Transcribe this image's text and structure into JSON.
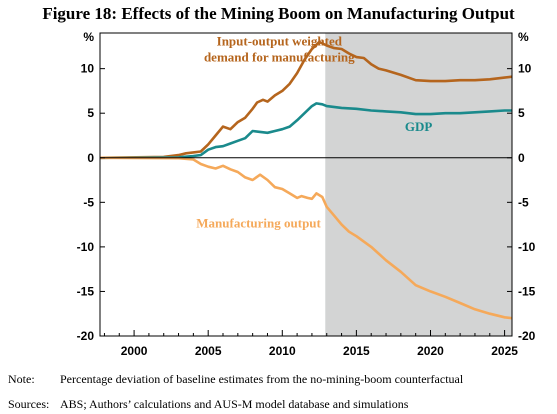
{
  "chart_data": {
    "type": "line",
    "title": "Figure 18: Effects of the Mining Boom on Manufacturing Output",
    "y_unit_left": "%",
    "y_unit_right": "%",
    "xlim": [
      1997.7,
      2025.5
    ],
    "ylim": [
      -20,
      14
    ],
    "x_ticks": [
      2000,
      2005,
      2010,
      2015,
      2020,
      2025
    ],
    "x_tick_labels": [
      "2000",
      "2005",
      "2010",
      "2015",
      "2020",
      "2025"
    ],
    "y_ticks": [
      10,
      5,
      0,
      -5,
      -10,
      -15,
      -20
    ],
    "y_tick_labels": [
      "10",
      "5",
      "0",
      "-5",
      "-10",
      "-15",
      "-20"
    ],
    "shaded_region": [
      2012.9,
      2025.5
    ],
    "grid": false,
    "colors": {
      "shading": "#d3d4d4",
      "demand": "#b5651d",
      "gdp": "#1a8a8c",
      "manufacturing": "#f5a95a"
    },
    "series": [
      {
        "name": "Input-output weighted demand for manufacturing",
        "label_lines": [
          "Input-output weighted",
          "demand for manufacturing"
        ],
        "color": "#b5651d",
        "points": [
          [
            1997.7,
            0
          ],
          [
            2002,
            0.1
          ],
          [
            2003,
            0.3
          ],
          [
            2003.5,
            0.5
          ],
          [
            2004,
            0.6
          ],
          [
            2004.5,
            0.7
          ],
          [
            2005,
            1.5
          ],
          [
            2005.5,
            2.5
          ],
          [
            2006,
            3.5
          ],
          [
            2006.5,
            3.2
          ],
          [
            2007,
            4.0
          ],
          [
            2007.5,
            4.5
          ],
          [
            2008,
            5.5
          ],
          [
            2008.3,
            6.2
          ],
          [
            2008.7,
            6.5
          ],
          [
            2009,
            6.3
          ],
          [
            2009.5,
            7.0
          ],
          [
            2010,
            7.5
          ],
          [
            2010.5,
            8.3
          ],
          [
            2011,
            9.5
          ],
          [
            2011.5,
            11.0
          ],
          [
            2012,
            12.2
          ],
          [
            2012.5,
            13.0
          ],
          [
            2013,
            12.6
          ],
          [
            2013.5,
            12.3
          ],
          [
            2014,
            12.2
          ],
          [
            2014.5,
            11.7
          ],
          [
            2015,
            11.3
          ],
          [
            2015.5,
            11.2
          ],
          [
            2016,
            10.5
          ],
          [
            2016.5,
            10.0
          ],
          [
            2017,
            9.8
          ],
          [
            2018,
            9.3
          ],
          [
            2019,
            8.7
          ],
          [
            2020,
            8.6
          ],
          [
            2021,
            8.6
          ],
          [
            2022,
            8.7
          ],
          [
            2023,
            8.7
          ],
          [
            2024,
            8.8
          ],
          [
            2025,
            9.0
          ],
          [
            2025.5,
            9.1
          ]
        ]
      },
      {
        "name": "GDP",
        "label_lines": [
          "GDP"
        ],
        "color": "#1a8a8c",
        "points": [
          [
            1997.7,
            0
          ],
          [
            2003,
            0.05
          ],
          [
            2004,
            0.2
          ],
          [
            2004.5,
            0.3
          ],
          [
            2005,
            0.9
          ],
          [
            2005.5,
            1.2
          ],
          [
            2006,
            1.3
          ],
          [
            2006.5,
            1.6
          ],
          [
            2007,
            1.9
          ],
          [
            2007.5,
            2.2
          ],
          [
            2008,
            3.0
          ],
          [
            2008.5,
            2.9
          ],
          [
            2009,
            2.8
          ],
          [
            2009.5,
            3.0
          ],
          [
            2010,
            3.2
          ],
          [
            2010.5,
            3.5
          ],
          [
            2011,
            4.2
          ],
          [
            2011.5,
            5.0
          ],
          [
            2012,
            5.8
          ],
          [
            2012.3,
            6.1
          ],
          [
            2012.7,
            6.0
          ],
          [
            2013,
            5.8
          ],
          [
            2014,
            5.6
          ],
          [
            2015,
            5.5
          ],
          [
            2016,
            5.3
          ],
          [
            2017,
            5.2
          ],
          [
            2018,
            5.1
          ],
          [
            2019,
            4.9
          ],
          [
            2020,
            4.9
          ],
          [
            2021,
            5.0
          ],
          [
            2022,
            5.0
          ],
          [
            2023,
            5.1
          ],
          [
            2024,
            5.2
          ],
          [
            2025,
            5.3
          ],
          [
            2025.5,
            5.3
          ]
        ]
      },
      {
        "name": "Manufacturing output",
        "label_lines": [
          "Manufacturing output"
        ],
        "color": "#f5a95a",
        "points": [
          [
            1997.7,
            0
          ],
          [
            2003,
            -0.05
          ],
          [
            2004,
            -0.2
          ],
          [
            2004.5,
            -0.7
          ],
          [
            2005,
            -1.0
          ],
          [
            2005.5,
            -1.2
          ],
          [
            2006,
            -0.9
          ],
          [
            2006.5,
            -1.3
          ],
          [
            2007,
            -1.6
          ],
          [
            2007.5,
            -2.2
          ],
          [
            2008,
            -2.5
          ],
          [
            2008.5,
            -1.9
          ],
          [
            2009,
            -2.5
          ],
          [
            2009.5,
            -3.3
          ],
          [
            2010,
            -3.5
          ],
          [
            2010.5,
            -4.0
          ],
          [
            2011,
            -4.5
          ],
          [
            2011.3,
            -4.3
          ],
          [
            2011.7,
            -4.5
          ],
          [
            2012,
            -4.6
          ],
          [
            2012.3,
            -4.0
          ],
          [
            2012.7,
            -4.4
          ],
          [
            2013,
            -5.5
          ],
          [
            2013.5,
            -6.5
          ],
          [
            2014,
            -7.5
          ],
          [
            2014.5,
            -8.3
          ],
          [
            2015,
            -8.8
          ],
          [
            2016,
            -10.0
          ],
          [
            2017,
            -11.5
          ],
          [
            2018,
            -12.8
          ],
          [
            2019,
            -14.3
          ],
          [
            2020,
            -15.0
          ],
          [
            2021,
            -15.6
          ],
          [
            2022,
            -16.3
          ],
          [
            2023,
            -17.0
          ],
          [
            2024,
            -17.5
          ],
          [
            2025,
            -17.9
          ],
          [
            2025.5,
            -18.0
          ]
        ]
      }
    ]
  },
  "footnotes": [
    {
      "label": "Note:",
      "text": "Percentage deviation of baseline estimates from the no-mining-boom counterfactual"
    },
    {
      "label": "Sources:",
      "text": "ABS; Authors’ calculations and AUS-M model database and simulations"
    }
  ]
}
